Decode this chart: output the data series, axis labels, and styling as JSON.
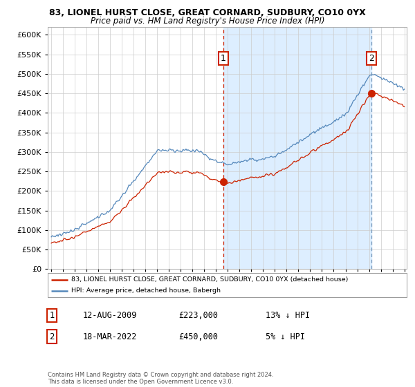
{
  "title1": "83, LIONEL HURST CLOSE, GREAT CORNARD, SUDBURY, CO10 0YX",
  "title2": "Price paid vs. HM Land Registry's House Price Index (HPI)",
  "ytick_values": [
    0,
    50000,
    100000,
    150000,
    200000,
    250000,
    300000,
    350000,
    400000,
    450000,
    500000,
    550000,
    600000
  ],
  "sale1_date": "12-AUG-2009",
  "sale1_price": 223000,
  "sale1_label": "13% ↓ HPI",
  "sale2_date": "18-MAR-2022",
  "sale2_price": 450000,
  "sale2_label": "5% ↓ HPI",
  "legend_line1": "83, LIONEL HURST CLOSE, GREAT CORNARD, SUDBURY, CO10 0YX (detached house)",
  "legend_line2": "HPI: Average price, detached house, Babergh",
  "footer": "Contains HM Land Registry data © Crown copyright and database right 2024.\nThis data is licensed under the Open Government Licence v3.0.",
  "line_color_red": "#cc2200",
  "line_color_blue": "#5588bb",
  "background_color": "#ffffff",
  "grid_color": "#cccccc",
  "shade_color": "#ddeeff",
  "sale1_year": 2009.625,
  "sale2_year": 2022.208,
  "year_start": 1995,
  "year_end": 2025
}
